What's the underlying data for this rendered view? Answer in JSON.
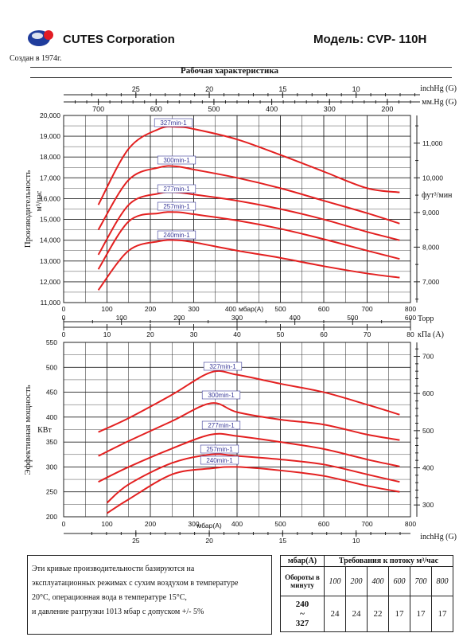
{
  "header": {
    "company": "CUTES Corporation",
    "founded": "Создан в 1974г.",
    "model": "Модель: CVP- 110H",
    "subtitle": "Рабочая характеристика"
  },
  "colors": {
    "curve": "#e32020",
    "grid": "#222222",
    "label_box": "#3a3a9a",
    "logo_blue": "#1f3c9c",
    "logo_red": "#e21c24"
  },
  "top_axis_labels": {
    "inhg": "inchHg (G)",
    "mmhg": "мм.Hg (G)"
  },
  "mid_axis_labels": {
    "torr": "Торр",
    "kpa": "кПа (A)"
  },
  "bottom_axis_label": "inchHg (G)",
  "chart_data": [
    {
      "type": "line",
      "title": "",
      "xlabel": "мбар(A)",
      "ylabel": "Производительность м³/час",
      "y2label": "фут³/мин",
      "xlim": [
        0,
        800
      ],
      "ylim": [
        11000,
        20000
      ],
      "y2lim": [
        6400,
        11800
      ],
      "x_ticks": [
        0,
        100,
        200,
        300,
        400,
        500,
        600,
        700,
        800
      ],
      "y_ticks": [
        "11,000",
        "12,000",
        "13,000",
        "14,000",
        "15,000",
        "16,000",
        "17,000",
        "18,000",
        "19,000",
        "20,000"
      ],
      "y2_ticks": [
        "7,000",
        "8,000",
        "9,000",
        "10,000",
        "11,000"
      ],
      "y2_tick_values": [
        7000,
        8000,
        9000,
        10000,
        11000
      ],
      "x_top_inhg_ticks": [
        "25",
        "20",
        "15",
        "10"
      ],
      "x_top_inhg_values": [
        25,
        20,
        15,
        10
      ],
      "x_top_mmhg_ticks": [
        "700",
        "600",
        "500",
        "400",
        "300",
        "200"
      ],
      "x_top_mmhg_values": [
        700,
        600,
        500,
        400,
        300,
        200
      ],
      "grid": true,
      "series": [
        {
          "name": "327min-1",
          "x": [
            80,
            150,
            220,
            260,
            300,
            400,
            500,
            600,
            700,
            775
          ],
          "y": [
            15700,
            18400,
            19350,
            19450,
            19350,
            18850,
            18100,
            17300,
            16500,
            16300
          ]
        },
        {
          "name": "300min-1",
          "x": [
            80,
            150,
            220,
            260,
            300,
            400,
            500,
            600,
            700,
            775
          ],
          "y": [
            14500,
            16900,
            17500,
            17550,
            17400,
            17000,
            16500,
            15900,
            15300,
            14800
          ]
        },
        {
          "name": "277min-1",
          "x": [
            80,
            150,
            220,
            260,
            300,
            400,
            500,
            600,
            700,
            775
          ],
          "y": [
            13300,
            15700,
            16250,
            16300,
            16200,
            15900,
            15500,
            15000,
            14400,
            14000
          ]
        },
        {
          "name": "257min-1",
          "x": [
            80,
            150,
            220,
            260,
            300,
            400,
            500,
            600,
            700,
            775
          ],
          "y": [
            12600,
            14900,
            15300,
            15350,
            15250,
            14950,
            14550,
            14050,
            13500,
            13100
          ]
        },
        {
          "name": "240min-1",
          "x": [
            80,
            150,
            220,
            260,
            300,
            400,
            500,
            600,
            700,
            775
          ],
          "y": [
            11600,
            13500,
            13950,
            14000,
            13900,
            13500,
            13150,
            12750,
            12400,
            12200
          ]
        }
      ]
    },
    {
      "type": "line",
      "title": "",
      "xlabel": "мбар(A)",
      "ylabel": "Эффективная мощность КВт",
      "xlim": [
        0,
        800
      ],
      "ylim": [
        200,
        550
      ],
      "x_ticks": [
        0,
        100,
        200,
        300,
        400,
        500,
        600,
        700,
        800
      ],
      "y_ticks": [
        "200",
        "250",
        "300",
        "350",
        "400",
        "450",
        "500",
        "550"
      ],
      "y2_ticks": [
        "300",
        "400",
        "500",
        "600",
        "700"
      ],
      "y2_tick_values": [
        300,
        400,
        500,
        600,
        700
      ],
      "torr_ticks": [
        "0",
        "100",
        "200",
        "300",
        "400",
        "500",
        "600"
      ],
      "torr_values": [
        0,
        100,
        200,
        300,
        400,
        500,
        600
      ],
      "kpa_ticks": [
        "0",
        "10",
        "20",
        "30",
        "40",
        "50",
        "60",
        "70",
        "80"
      ],
      "kpa_values": [
        0,
        10,
        20,
        30,
        40,
        50,
        60,
        70,
        80
      ],
      "x_bottom_inhg_ticks": [
        "25",
        "20",
        "15",
        "10"
      ],
      "x_bottom_inhg_values": [
        25,
        20,
        15,
        10
      ],
      "grid": true,
      "series": [
        {
          "name": "327min-1",
          "x": [
            80,
            150,
            250,
            340,
            400,
            500,
            600,
            700,
            775
          ],
          "y": [
            370,
            398,
            445,
            490,
            485,
            467,
            450,
            425,
            405
          ]
        },
        {
          "name": "300min-1",
          "x": [
            80,
            150,
            250,
            340,
            400,
            500,
            600,
            700,
            775
          ],
          "y": [
            322,
            352,
            392,
            428,
            410,
            395,
            385,
            365,
            354
          ]
        },
        {
          "name": "277min-1",
          "x": [
            80,
            150,
            250,
            340,
            400,
            500,
            600,
            700,
            775
          ],
          "y": [
            270,
            300,
            337,
            365,
            362,
            350,
            336,
            315,
            301
          ]
        },
        {
          "name": "257min-1",
          "x": [
            100,
            150,
            250,
            340,
            400,
            500,
            600,
            700,
            775
          ],
          "y": [
            228,
            265,
            308,
            325,
            322,
            315,
            305,
            285,
            270
          ]
        },
        {
          "name": "240min-1",
          "x": [
            100,
            150,
            250,
            340,
            400,
            500,
            600,
            700,
            775
          ],
          "y": [
            207,
            235,
            285,
            297,
            300,
            293,
            282,
            262,
            250
          ]
        }
      ]
    }
  ],
  "note": [
    "Эти кривые производительности базируются на",
    "эксплуатационных режимах с сухим воздухом в температуре",
    "20°С, операционная вода в температуре 15°С,",
    "и давление разгрузки 1013 мбар с допуском +/- 5%"
  ],
  "table": {
    "col1_header": "мбар(A)",
    "col2_header": "Требования к потоку м³/час",
    "rpm_label": "Обороты в минуту",
    "pressures": [
      "100",
      "200",
      "400",
      "600",
      "700",
      "800"
    ],
    "range_top": "240",
    "range_sep": "~",
    "range_bottom": "327",
    "values": [
      "24",
      "24",
      "22",
      "17",
      "17",
      "17"
    ]
  }
}
